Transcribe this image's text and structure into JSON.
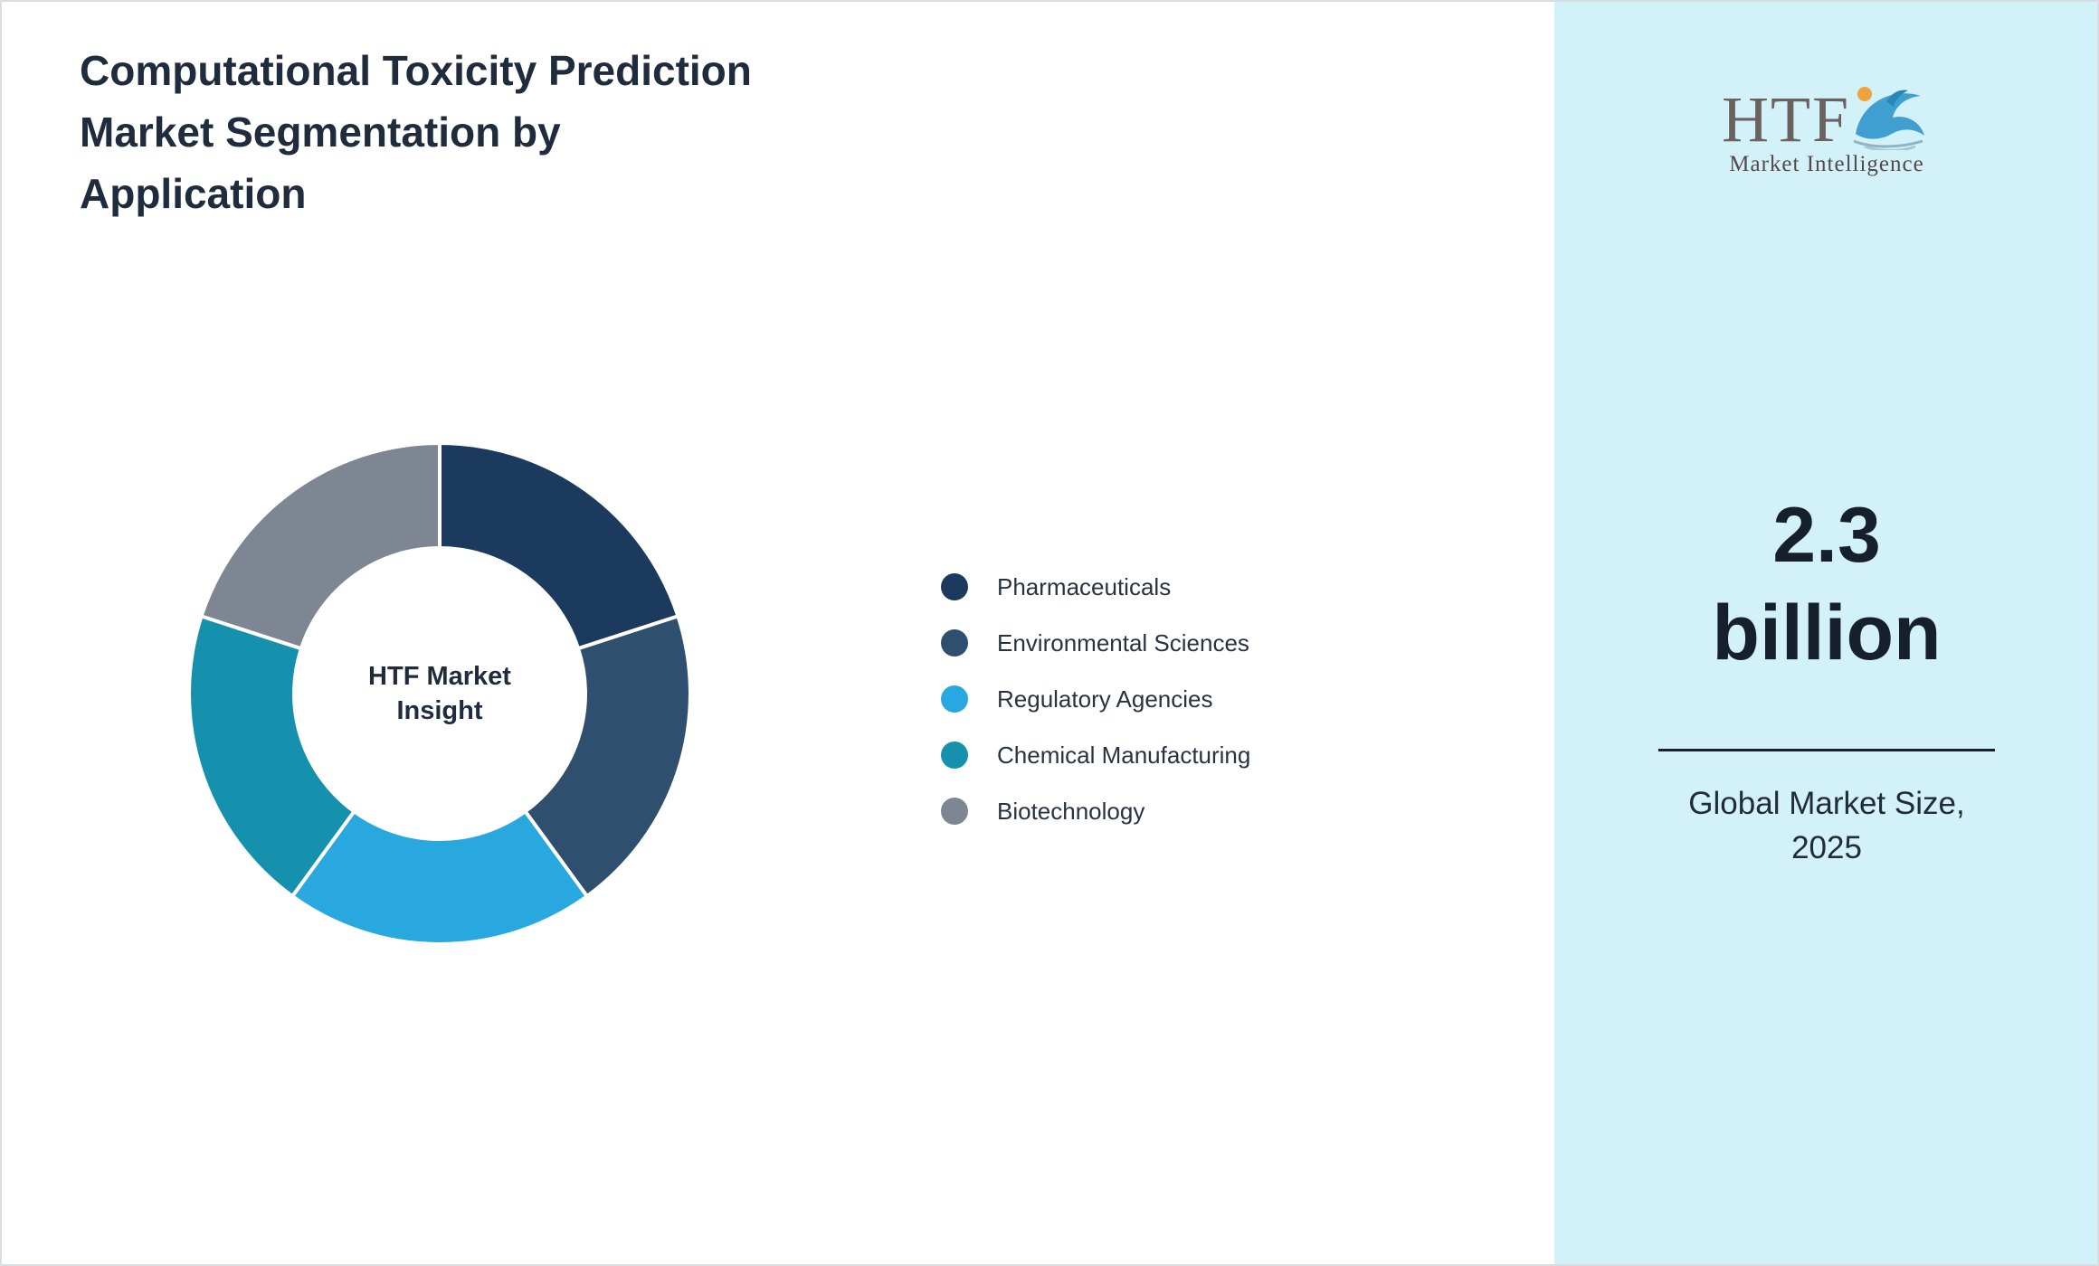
{
  "title": {
    "lines": [
      "Computational Toxicity Prediction",
      "Market Segmentation by",
      "Application"
    ]
  },
  "donut": {
    "center_label": "HTF Market Insight"
  },
  "legend": {
    "items": [
      {
        "label": "Pharmaceuticals",
        "color": "#1c3a5e"
      },
      {
        "label": "Environmental Sciences",
        "color": "#2f4f6e"
      },
      {
        "label": "Regulatory Agencies",
        "color": "#29a8e0"
      },
      {
        "label": "Chemical Manufacturing",
        "color": "#1590ad"
      },
      {
        "label": "Biotechnology",
        "color": "#7d8692"
      }
    ]
  },
  "side_panel": {
    "background": "#d3f1f9",
    "logo": {
      "text": "HTF",
      "subtext": "Market Intelligence",
      "icon": "dolphin-logo-icon"
    },
    "market_size": {
      "value_line1": "2.3",
      "value_line2": "billion",
      "caption_line1": "Global Market Size,",
      "caption_line2": "2025"
    }
  },
  "chart_data": {
    "type": "pie",
    "subtype": "donut",
    "title": "Computational Toxicity Prediction Market Segmentation by Application",
    "center_label": "HTF Market Insight",
    "categories": [
      "Pharmaceuticals",
      "Environmental Sciences",
      "Regulatory Agencies",
      "Chemical Manufacturing",
      "Biotechnology"
    ],
    "values": [
      20,
      20,
      20,
      20,
      20
    ],
    "unit": "%",
    "colors": [
      "#1c3a5e",
      "#2f4f6e",
      "#29a8e0",
      "#1590ad",
      "#7d8692"
    ],
    "start_angle_deg": 0,
    "direction": "clockwise",
    "inner_radius_ratio": 0.58,
    "legend_position": "right",
    "annotation": {
      "global_market_size_2025": "2.3 billion"
    }
  }
}
